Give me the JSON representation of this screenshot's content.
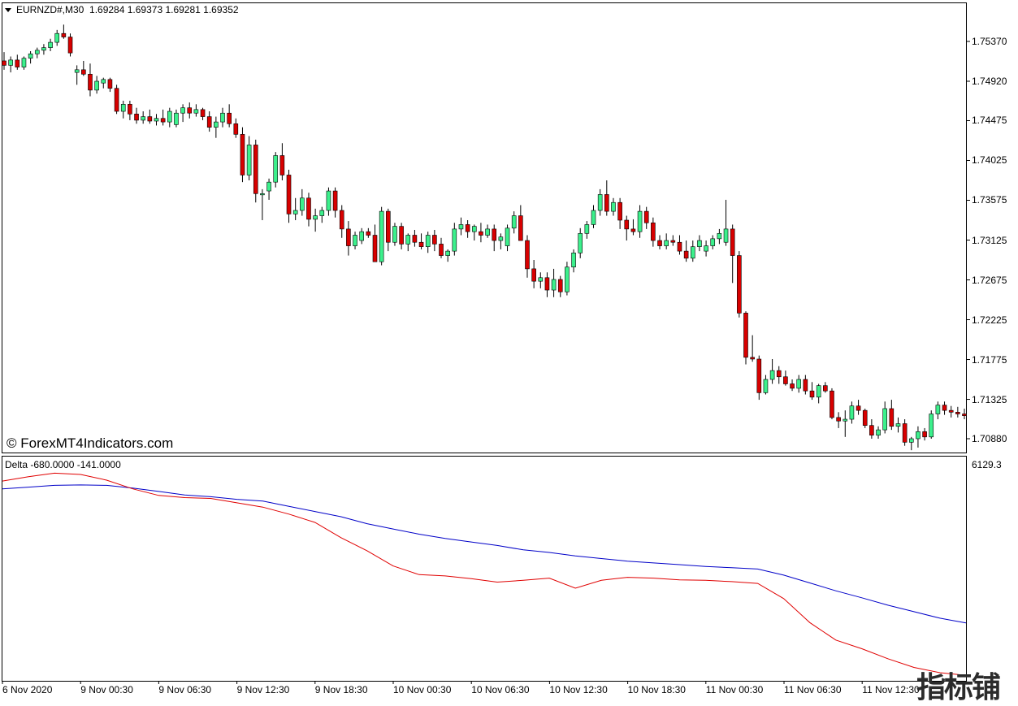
{
  "header": {
    "symbol": "EURNZD#,M30",
    "ohlc": "1.69284 1.69373 1.69281 1.69352"
  },
  "indicator": {
    "label": "Delta -680.0000 -141.0000",
    "scale_top": "6129.3"
  },
  "watermark": "© ForexMT4Indicators.com",
  "logo_text": "指标铺",
  "colors": {
    "bull": "#3cf08c",
    "bear": "#d70000",
    "line_blue": "#0000c8",
    "line_red": "#e00000"
  },
  "chart_data": {
    "type": "candlestick",
    "y_ticks": [
      "1.75370",
      "1.74920",
      "1.74475",
      "1.74025",
      "1.73575",
      "1.73125",
      "1.72675",
      "1.72225",
      "1.71775",
      "1.71325",
      "1.70880"
    ],
    "x_ticks": [
      "6 Nov 2020",
      "9 Nov 00:30",
      "9 Nov 06:30",
      "9 Nov 12:30",
      "9 Nov 18:30",
      "10 Nov 00:30",
      "10 Nov 06:30",
      "10 Nov 12:30",
      "10 Nov 18:30",
      "11 Nov 00:30",
      "11 Nov 06:30",
      "11 Nov 12:30"
    ],
    "candles": [
      [
        1.7515,
        1.7525,
        1.7505,
        1.751
      ],
      [
        1.751,
        1.752,
        1.7502,
        1.7516
      ],
      [
        1.7516,
        1.7522,
        1.7505,
        1.7508
      ],
      [
        1.7508,
        1.752,
        1.7505,
        1.7518
      ],
      [
        1.7518,
        1.7526,
        1.7512,
        1.7523
      ],
      [
        1.7523,
        1.753,
        1.7518,
        1.7527
      ],
      [
        1.7527,
        1.7534,
        1.7522,
        1.753
      ],
      [
        1.753,
        1.754,
        1.7526,
        1.7536
      ],
      [
        1.7536,
        1.755,
        1.7532,
        1.7546
      ],
      [
        1.7546,
        1.7556,
        1.754,
        1.7542
      ],
      [
        1.7542,
        1.7546,
        1.752,
        1.7524
      ],
      [
        1.7502,
        1.751,
        1.7488,
        1.7505
      ],
      [
        1.7505,
        1.7515,
        1.7498,
        1.75
      ],
      [
        1.75,
        1.7512,
        1.7475,
        1.7482
      ],
      [
        1.7482,
        1.7498,
        1.7478,
        1.7492
      ],
      [
        1.749,
        1.7496,
        1.7484,
        1.7494
      ],
      [
        1.7494,
        1.7496,
        1.748,
        1.7484
      ],
      [
        1.7484,
        1.7488,
        1.7455,
        1.7458
      ],
      [
        1.7458,
        1.747,
        1.745,
        1.7466
      ],
      [
        1.7466,
        1.747,
        1.7448,
        1.7455
      ],
      [
        1.7455,
        1.7462,
        1.7444,
        1.7448
      ],
      [
        1.7448,
        1.7458,
        1.7444,
        1.7452
      ],
      [
        1.7452,
        1.746,
        1.7444,
        1.7447
      ],
      [
        1.7447,
        1.7455,
        1.7442,
        1.745
      ],
      [
        1.745,
        1.746,
        1.7442,
        1.7446
      ],
      [
        1.7446,
        1.7462,
        1.744,
        1.7458
      ],
      [
        1.7443,
        1.746,
        1.744,
        1.7456
      ],
      [
        1.7456,
        1.7466,
        1.7446,
        1.7462
      ],
      [
        1.7462,
        1.7468,
        1.745,
        1.7456
      ],
      [
        1.7456,
        1.7466,
        1.7452,
        1.746
      ],
      [
        1.746,
        1.7462,
        1.7448,
        1.7452
      ],
      [
        1.7452,
        1.7458,
        1.7435,
        1.744
      ],
      [
        1.744,
        1.7452,
        1.7428,
        1.7446
      ],
      [
        1.7446,
        1.7462,
        1.744,
        1.7456
      ],
      [
        1.7456,
        1.7466,
        1.744,
        1.7444
      ],
      [
        1.7444,
        1.745,
        1.7428,
        1.7432
      ],
      [
        1.7432,
        1.744,
        1.7378,
        1.7386
      ],
      [
        1.7386,
        1.743,
        1.738,
        1.742
      ],
      [
        1.742,
        1.7426,
        1.7355,
        1.7365
      ],
      [
        1.7365,
        1.737,
        1.7335,
        1.7365
      ],
      [
        1.7368,
        1.7382,
        1.7358,
        1.7378
      ],
      [
        1.7378,
        1.7412,
        1.7372,
        1.7408
      ],
      [
        1.7408,
        1.7422,
        1.738,
        1.7386
      ],
      [
        1.7386,
        1.7392,
        1.7332,
        1.7342
      ],
      [
        1.7342,
        1.736,
        1.7335,
        1.7346
      ],
      [
        1.7346,
        1.737,
        1.734,
        1.736
      ],
      [
        1.736,
        1.7366,
        1.7328,
        1.7336
      ],
      [
        1.7336,
        1.7348,
        1.7322,
        1.734
      ],
      [
        1.734,
        1.735,
        1.7332,
        1.7346
      ],
      [
        1.7346,
        1.7372,
        1.734,
        1.7368
      ],
      [
        1.7368,
        1.7372,
        1.7338,
        1.7346
      ],
      [
        1.7346,
        1.7352,
        1.7315,
        1.7325
      ],
      [
        1.7325,
        1.7334,
        1.7295,
        1.7306
      ],
      [
        1.7306,
        1.7322,
        1.7302,
        1.7318
      ],
      [
        1.7312,
        1.7326,
        1.7308,
        1.7322
      ],
      [
        1.7322,
        1.7326,
        1.7315,
        1.7318
      ],
      [
        1.7318,
        1.733,
        1.729,
        1.7288
      ],
      [
        1.7288,
        1.735,
        1.7284,
        1.7345
      ],
      [
        1.7345,
        1.7348,
        1.73,
        1.731
      ],
      [
        1.731,
        1.7332,
        1.7306,
        1.7328
      ],
      [
        1.7328,
        1.7332,
        1.7302,
        1.7308
      ],
      [
        1.7308,
        1.732,
        1.73,
        1.7318
      ],
      [
        1.7318,
        1.7324,
        1.7305,
        1.731
      ],
      [
        1.731,
        1.732,
        1.7302,
        1.7305
      ],
      [
        1.7305,
        1.7322,
        1.7298,
        1.7318
      ],
      [
        1.7318,
        1.7324,
        1.73,
        1.7308
      ],
      [
        1.7308,
        1.7315,
        1.7292,
        1.7295
      ],
      [
        1.7295,
        1.7302,
        1.7288,
        1.73
      ],
      [
        1.73,
        1.7332,
        1.7295,
        1.7325
      ],
      [
        1.7325,
        1.7338,
        1.7318,
        1.733
      ],
      [
        1.733,
        1.7335,
        1.7315,
        1.7322
      ],
      [
        1.7322,
        1.733,
        1.7312,
        1.7328
      ],
      [
        1.7322,
        1.7332,
        1.731,
        1.7318
      ],
      [
        1.7318,
        1.733,
        1.7315,
        1.7325
      ],
      [
        1.7325,
        1.733,
        1.73,
        1.7312
      ],
      [
        1.7312,
        1.732,
        1.7302,
        1.7316
      ],
      [
        1.7306,
        1.733,
        1.73,
        1.7326
      ],
      [
        1.7326,
        1.7345,
        1.732,
        1.734
      ],
      [
        1.734,
        1.7352,
        1.7312,
        1.7312
      ],
      [
        1.7312,
        1.7318,
        1.727,
        1.728
      ],
      [
        1.728,
        1.729,
        1.7258,
        1.7266
      ],
      [
        1.7266,
        1.7276,
        1.7258,
        1.727
      ],
      [
        1.727,
        1.7276,
        1.7248,
        1.7256
      ],
      [
        1.7256,
        1.728,
        1.7248,
        1.7268
      ],
      [
        1.7268,
        1.7272,
        1.7248,
        1.7254
      ],
      [
        1.7254,
        1.7288,
        1.725,
        1.7282
      ],
      [
        1.7282,
        1.7302,
        1.7276,
        1.7298
      ],
      [
        1.7298,
        1.7326,
        1.7292,
        1.732
      ],
      [
        1.732,
        1.7334,
        1.7314,
        1.733
      ],
      [
        1.733,
        1.7352,
        1.7326,
        1.7346
      ],
      [
        1.7346,
        1.737,
        1.734,
        1.7364
      ],
      [
        1.7364,
        1.738,
        1.734,
        1.7345
      ],
      [
        1.7345,
        1.736,
        1.734,
        1.7355
      ],
      [
        1.7355,
        1.736,
        1.7325,
        1.7335
      ],
      [
        1.7335,
        1.734,
        1.7312,
        1.7325
      ],
      [
        1.7325,
        1.7336,
        1.7318,
        1.7322
      ],
      [
        1.7322,
        1.7352,
        1.7315,
        1.7345
      ],
      [
        1.7345,
        1.735,
        1.7325,
        1.7332
      ],
      [
        1.7332,
        1.7338,
        1.7305,
        1.7312
      ],
      [
        1.7312,
        1.7318,
        1.7302,
        1.7306
      ],
      [
        1.7306,
        1.732,
        1.7302,
        1.7312
      ],
      [
        1.7312,
        1.7318,
        1.7306,
        1.731
      ],
      [
        1.731,
        1.7318,
        1.7296,
        1.73
      ],
      [
        1.73,
        1.7312,
        1.7288,
        1.7292
      ],
      [
        1.7292,
        1.7312,
        1.7288,
        1.7305
      ],
      [
        1.7305,
        1.7318,
        1.73,
        1.7312
      ],
      [
        1.73,
        1.7312,
        1.7294,
        1.7306
      ],
      [
        1.7306,
        1.7318,
        1.7302,
        1.7314
      ],
      [
        1.7314,
        1.7325,
        1.7308,
        1.732
      ],
      [
        1.731,
        1.7358,
        1.7306,
        1.7325
      ],
      [
        1.7325,
        1.733,
        1.7264,
        1.7295
      ],
      [
        1.7295,
        1.73,
        1.7225,
        1.723
      ],
      [
        1.723,
        1.7232,
        1.7172,
        1.718
      ],
      [
        1.718,
        1.7205,
        1.7175,
        1.7178
      ],
      [
        1.7178,
        1.7182,
        1.7132,
        1.714
      ],
      [
        1.714,
        1.716,
        1.7138,
        1.7155
      ],
      [
        1.7155,
        1.7178,
        1.715,
        1.7165
      ],
      [
        1.7165,
        1.717,
        1.715,
        1.7158
      ],
      [
        1.7158,
        1.7165,
        1.7148,
        1.715
      ],
      [
        1.715,
        1.7155,
        1.7142,
        1.7145
      ],
      [
        1.7145,
        1.716,
        1.714,
        1.7155
      ],
      [
        1.7155,
        1.716,
        1.7138,
        1.7142
      ],
      [
        1.7142,
        1.7152,
        1.7132,
        1.7135
      ],
      [
        1.7135,
        1.715,
        1.7128,
        1.7148
      ],
      [
        1.7148,
        1.7152,
        1.714,
        1.7142
      ],
      [
        1.7142,
        1.7145,
        1.711,
        1.7112
      ],
      [
        1.7112,
        1.7118,
        1.71,
        1.7108
      ],
      [
        1.7108,
        1.712,
        1.709,
        1.711
      ],
      [
        1.711,
        1.713,
        1.7105,
        1.7125
      ],
      [
        1.7125,
        1.7132,
        1.7115,
        1.712
      ],
      [
        1.712,
        1.7122,
        1.71,
        1.7103
      ],
      [
        1.7103,
        1.711,
        1.7088,
        1.7092
      ],
      [
        1.7092,
        1.7102,
        1.7088,
        1.7098
      ],
      [
        1.7098,
        1.713,
        1.7094,
        1.7122
      ],
      [
        1.7122,
        1.7132,
        1.7098,
        1.7102
      ],
      [
        1.7102,
        1.7112,
        1.7095,
        1.7105
      ],
      [
        1.7105,
        1.711,
        1.708,
        1.7084
      ],
      [
        1.7084,
        1.709,
        1.7075,
        1.7088
      ],
      [
        1.7088,
        1.7102,
        1.7078,
        1.7096
      ],
      [
        1.7096,
        1.71,
        1.7086,
        1.709
      ],
      [
        1.709,
        1.712,
        1.7088,
        1.7116
      ],
      [
        1.7116,
        1.713,
        1.711,
        1.7126
      ],
      [
        1.7126,
        1.713,
        1.7115,
        1.712
      ],
      [
        1.712,
        1.7125,
        1.7112,
        1.7118
      ],
      [
        1.7118,
        1.7124,
        1.7112,
        1.7116
      ],
      [
        1.7116,
        1.7122,
        1.711,
        1.7114
      ]
    ],
    "blue_line": [
      -280,
      -240,
      -200,
      -190,
      -200,
      -260,
      -340,
      -420,
      -460,
      -520,
      -560,
      -680,
      -800,
      -920,
      -1080,
      -1200,
      -1320,
      -1420,
      -1500,
      -1580,
      -1680,
      -1740,
      -1820,
      -1880,
      -1940,
      -1980,
      -2020,
      -2060,
      -2090,
      -2120,
      -2260,
      -2440,
      -2620,
      -2780,
      -2950,
      -3100,
      -3250,
      -3360
    ],
    "red_line": [
      -100,
      0,
      80,
      50,
      -80,
      -280,
      -430,
      -480,
      -500,
      -600,
      -700,
      -860,
      -1050,
      -1400,
      -1700,
      -2050,
      -2250,
      -2280,
      -2340,
      -2420,
      -2380,
      -2330,
      -2560,
      -2380,
      -2310,
      -2330,
      -2370,
      -2380,
      -2410,
      -2450,
      -2800,
      -3350,
      -3750,
      -3950,
      -4180,
      -4380,
      -4500,
      -4560
    ]
  }
}
